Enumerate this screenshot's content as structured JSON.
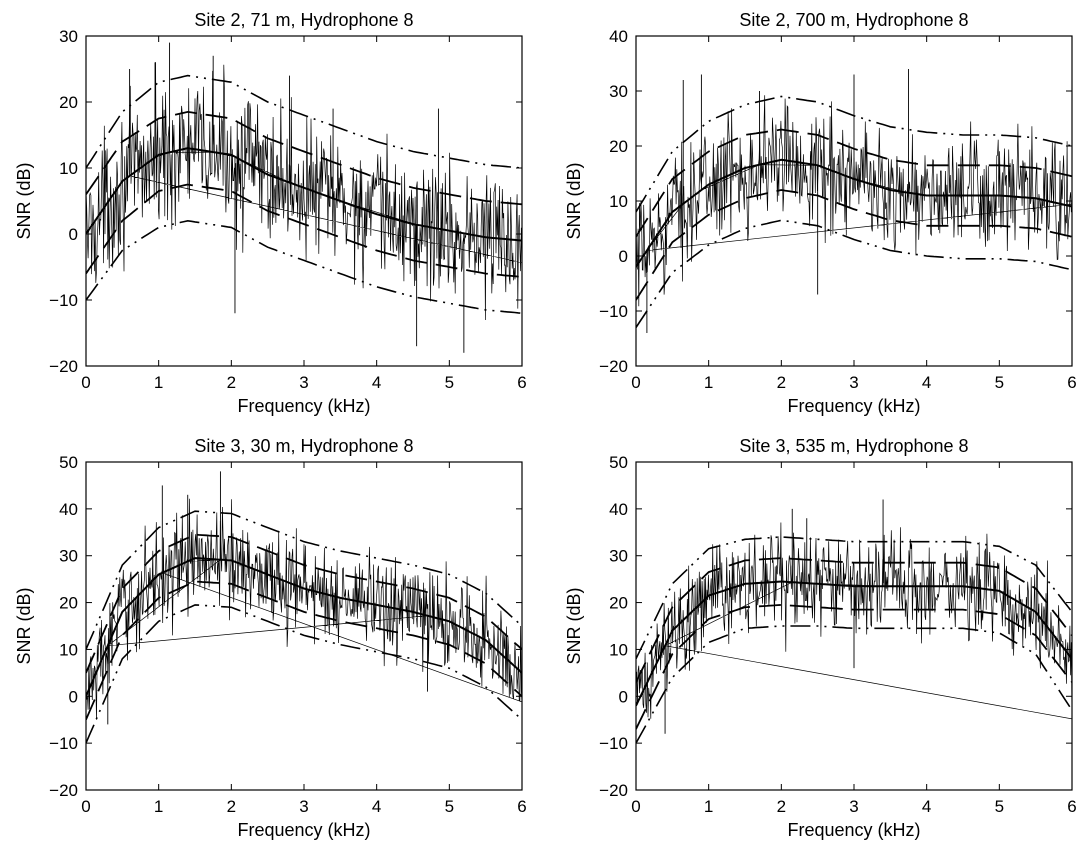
{
  "chart_data": [
    {
      "type": "line",
      "title": "Site 2, 71 m, Hydrophone 8",
      "xlabel": "Frequency (kHz)",
      "ylabel": "SNR (dB)",
      "xlim": [
        0,
        6
      ],
      "ylim": [
        -20,
        30
      ],
      "xticks": [
        0,
        1,
        2,
        3,
        4,
        5,
        6
      ],
      "yticks": [
        -20,
        -10,
        0,
        10,
        20,
        30
      ],
      "grid": false,
      "series": [
        {
          "style": "noisy-solid",
          "x": [
            0,
            0.5,
            1.0,
            1.4,
            2.0,
            2.5,
            3.0,
            3.5,
            4.0,
            4.5,
            5.0,
            5.5,
            6.0
          ],
          "y": [
            0,
            8,
            12,
            13,
            12,
            9,
            7,
            5,
            3,
            1.5,
            0.5,
            -0.5,
            -1
          ]
        },
        {
          "style": "solid",
          "x": [
            0,
            0.5,
            1.0,
            1.4,
            2.0,
            2.5,
            3.0,
            3.5,
            4.0,
            4.5,
            5.0,
            5.5,
            6.0
          ],
          "y": [
            0,
            8,
            12,
            13,
            12,
            9,
            7,
            5,
            3,
            1.5,
            0.5,
            -0.5,
            -1
          ]
        },
        {
          "style": "dashed",
          "x": [
            0,
            0.5,
            1.0,
            1.4,
            2.0,
            2.5,
            3.0,
            3.5,
            4.0,
            4.5,
            5.0,
            5.5,
            6.0
          ],
          "y": [
            6,
            14,
            17.5,
            18.5,
            17.5,
            14.5,
            12.5,
            10.5,
            8.5,
            7,
            6,
            5,
            4.5
          ]
        },
        {
          "style": "dashed",
          "x": [
            0,
            0.5,
            1.0,
            1.4,
            2.0,
            2.5,
            3.0,
            3.5,
            4.0,
            4.5,
            5.0,
            5.5,
            6.0
          ],
          "y": [
            -6,
            2,
            6.5,
            7.5,
            6.5,
            3.5,
            1.5,
            -0.5,
            -2.5,
            -4,
            -5,
            -6,
            -6.5
          ]
        },
        {
          "style": "dashdot",
          "x": [
            0,
            0.5,
            1.0,
            1.4,
            2.0,
            2.5,
            3.0,
            3.5,
            4.0,
            4.5,
            5.0,
            5.5,
            6.0
          ],
          "y": [
            10,
            18.5,
            23,
            24,
            23,
            20,
            18,
            16,
            14,
            12.5,
            11.5,
            10.5,
            10
          ]
        },
        {
          "style": "dashdot",
          "x": [
            0,
            0.5,
            1.0,
            1.4,
            2.0,
            2.5,
            3.0,
            3.5,
            4.0,
            4.5,
            5.0,
            5.5,
            6.0
          ],
          "y": [
            -10,
            -2.5,
            1,
            2,
            1,
            -2,
            -4,
            -6,
            -8,
            -9.5,
            -10.5,
            -11.5,
            -12
          ]
        }
      ],
      "spikes": [
        [
          0.6,
          25
        ],
        [
          0.95,
          26
        ],
        [
          1.15,
          29
        ],
        [
          1.75,
          27
        ],
        [
          2.05,
          -12
        ],
        [
          2.8,
          24
        ],
        [
          3.4,
          19
        ],
        [
          4.55,
          -17
        ],
        [
          4.85,
          19
        ],
        [
          5.2,
          -18
        ]
      ]
    },
    {
      "type": "line",
      "title": "Site 2, 700 m, Hydrophone 8",
      "xlabel": "Frequency (kHz)",
      "ylabel": "SNR (dB)",
      "xlim": [
        0,
        6
      ],
      "ylim": [
        -20,
        40
      ],
      "xticks": [
        0,
        1,
        2,
        3,
        4,
        5,
        6
      ],
      "yticks": [
        -20,
        -10,
        0,
        10,
        20,
        30,
        40
      ],
      "grid": false,
      "series": [
        {
          "style": "noisy-solid",
          "x": [
            0,
            0.5,
            1.0,
            1.5,
            2.0,
            2.5,
            3.0,
            3.5,
            4.0,
            4.5,
            5.0,
            5.5,
            6.0
          ],
          "y": [
            -2,
            8,
            13,
            16,
            17.5,
            16.5,
            14,
            12,
            11,
            11,
            11,
            10.5,
            9
          ]
        },
        {
          "style": "solid",
          "x": [
            0,
            0.5,
            1.0,
            1.5,
            2.0,
            2.5,
            3.0,
            3.5,
            4.0,
            4.5,
            5.0,
            5.5,
            6.0
          ],
          "y": [
            -2,
            8,
            13,
            16,
            17.5,
            16.5,
            14,
            12,
            11,
            11,
            11,
            10.5,
            9
          ]
        },
        {
          "style": "dashed",
          "x": [
            0,
            0.5,
            1.0,
            1.5,
            2.0,
            2.5,
            3.0,
            3.5,
            4.0,
            4.5,
            5.0,
            5.5,
            6.0
          ],
          "y": [
            3.5,
            14,
            19,
            22,
            23,
            22,
            19.5,
            17.5,
            16.5,
            16.5,
            16.5,
            16,
            14.5
          ]
        },
        {
          "style": "dashed",
          "x": [
            0,
            0.5,
            1.0,
            1.5,
            2.0,
            2.5,
            3.0,
            3.5,
            4.0,
            4.5,
            5.0,
            5.5,
            6.0
          ],
          "y": [
            -8,
            2.5,
            7.5,
            10.5,
            12,
            11,
            8.5,
            6.5,
            5.5,
            5.5,
            5.5,
            5,
            3.5
          ]
        },
        {
          "style": "dashdot",
          "x": [
            0,
            0.5,
            1.0,
            1.5,
            2.0,
            2.5,
            3.0,
            3.5,
            4.0,
            4.5,
            5.0,
            5.5,
            6.0
          ],
          "y": [
            8,
            19,
            24.5,
            27.5,
            29,
            28,
            25.5,
            23.5,
            22.5,
            22,
            22,
            21.5,
            20
          ]
        },
        {
          "style": "dashdot",
          "x": [
            0,
            0.5,
            1.0,
            1.5,
            2.0,
            2.5,
            3.0,
            3.5,
            4.0,
            4.5,
            5.0,
            5.5,
            6.0
          ],
          "y": [
            -13,
            -3,
            2,
            5,
            6.5,
            5.5,
            3,
            1,
            0,
            -0.5,
            -0.5,
            -1,
            -2.5
          ]
        }
      ],
      "spikes": [
        [
          0.15,
          -14
        ],
        [
          0.65,
          32
        ],
        [
          0.9,
          33
        ],
        [
          1.7,
          30
        ],
        [
          2.5,
          -7
        ],
        [
          3.0,
          33
        ],
        [
          3.75,
          34
        ]
      ]
    },
    {
      "type": "line",
      "title": "Site 3, 30 m, Hydrophone 8",
      "xlabel": "Frequency (kHz)",
      "ylabel": "SNR (dB)",
      "xlim": [
        0,
        6
      ],
      "ylim": [
        -20,
        50
      ],
      "xticks": [
        0,
        1,
        2,
        3,
        4,
        5,
        6
      ],
      "yticks": [
        -20,
        -10,
        0,
        10,
        20,
        30,
        40,
        50
      ],
      "grid": false,
      "series": [
        {
          "style": "noisy-solid",
          "x": [
            0,
            0.5,
            1.0,
            1.5,
            2.0,
            2.5,
            3.0,
            3.5,
            4.0,
            4.5,
            5.0,
            5.5,
            6.0
          ],
          "y": [
            0,
            18,
            26,
            29.5,
            29,
            26,
            23,
            21,
            19.5,
            18,
            16,
            12,
            5
          ]
        },
        {
          "style": "solid",
          "x": [
            0,
            0.5,
            1.0,
            1.5,
            2.0,
            2.5,
            3.0,
            3.5,
            4.0,
            4.5,
            5.0,
            5.5,
            6.0
          ],
          "y": [
            0,
            18,
            26,
            29.5,
            29,
            26,
            23,
            21,
            19.5,
            18,
            16,
            12,
            5
          ]
        },
        {
          "style": "dashed",
          "x": [
            0,
            0.5,
            1.0,
            1.5,
            2.0,
            2.5,
            3.0,
            3.5,
            4.0,
            4.5,
            5.0,
            5.5,
            6.0
          ],
          "y": [
            5,
            23,
            31,
            34.5,
            34,
            31,
            28,
            26,
            24.5,
            23,
            21,
            17,
            10
          ]
        },
        {
          "style": "dashed",
          "x": [
            0,
            0.5,
            1.0,
            1.5,
            2.0,
            2.5,
            3.0,
            3.5,
            4.0,
            4.5,
            5.0,
            5.5,
            6.0
          ],
          "y": [
            -5,
            13,
            21,
            24.5,
            24,
            21,
            18,
            16,
            14.5,
            13,
            11,
            7,
            0
          ]
        },
        {
          "style": "dashdot",
          "x": [
            0,
            0.5,
            1.0,
            1.5,
            2.0,
            2.5,
            3.0,
            3.5,
            4.0,
            4.5,
            5.0,
            5.5,
            6.0
          ],
          "y": [
            10,
            28,
            36,
            39.5,
            39,
            36,
            33,
            31,
            29.5,
            28,
            26,
            22,
            15
          ]
        },
        {
          "style": "dashdot",
          "x": [
            0,
            0.5,
            1.0,
            1.5,
            2.0,
            2.5,
            3.0,
            3.5,
            4.0,
            4.5,
            5.0,
            5.5,
            6.0
          ],
          "y": [
            -10,
            8,
            16,
            19.5,
            19,
            16,
            13,
            11,
            9.5,
            8,
            6,
            2,
            -5
          ]
        }
      ],
      "spikes": [
        [
          1.05,
          45
        ],
        [
          1.4,
          43
        ],
        [
          1.85,
          48
        ],
        [
          0.3,
          -6
        ],
        [
          4.7,
          1
        ]
      ]
    },
    {
      "type": "line",
      "title": "Site 3, 535 m, Hydrophone 8",
      "xlabel": "Frequency (kHz)",
      "ylabel": "SNR (dB)",
      "xlim": [
        0,
        6
      ],
      "ylim": [
        -20,
        50
      ],
      "xticks": [
        0,
        1,
        2,
        3,
        4,
        5,
        6
      ],
      "yticks": [
        -20,
        -10,
        0,
        10,
        20,
        30,
        40,
        50
      ],
      "grid": false,
      "series": [
        {
          "style": "noisy-solid",
          "x": [
            0,
            0.5,
            1.0,
            1.5,
            2.0,
            2.5,
            3.0,
            3.5,
            4.0,
            4.5,
            5.0,
            5.5,
            6.0
          ],
          "y": [
            -2,
            14,
            21.5,
            24,
            24.5,
            24,
            23.5,
            23.5,
            23.5,
            23.5,
            22.5,
            18,
            8
          ]
        },
        {
          "style": "solid",
          "x": [
            0,
            0.5,
            1.0,
            1.5,
            2.0,
            2.5,
            3.0,
            3.5,
            4.0,
            4.5,
            5.0,
            5.5,
            6.0
          ],
          "y": [
            -2,
            14,
            21.5,
            24,
            24.5,
            24,
            23.5,
            23.5,
            23.5,
            23.5,
            22.5,
            18,
            8
          ]
        },
        {
          "style": "dashed",
          "x": [
            0,
            0.5,
            1.0,
            1.5,
            2.0,
            2.5,
            3.0,
            3.5,
            4.0,
            4.5,
            5.0,
            5.5,
            6.0
          ],
          "y": [
            3,
            19,
            26.5,
            29,
            29.5,
            29,
            28.5,
            28.5,
            28.5,
            28.5,
            27.5,
            23,
            13
          ]
        },
        {
          "style": "dashed",
          "x": [
            0,
            0.5,
            1.0,
            1.5,
            2.0,
            2.5,
            3.0,
            3.5,
            4.0,
            4.5,
            5.0,
            5.5,
            6.0
          ],
          "y": [
            -7,
            9,
            16.5,
            19,
            19.5,
            19,
            18.5,
            18.5,
            18.5,
            18.5,
            17.5,
            13,
            3
          ]
        },
        {
          "style": "dashdot",
          "x": [
            0,
            0.5,
            1.0,
            1.5,
            2.0,
            2.5,
            3.0,
            3.5,
            4.0,
            4.5,
            5.0,
            5.5,
            6.0
          ],
          "y": [
            8,
            24,
            31.5,
            33.5,
            34,
            33.5,
            33,
            33,
            33,
            33,
            32,
            28,
            18
          ]
        },
        {
          "style": "dashdot",
          "x": [
            0,
            0.5,
            1.0,
            1.5,
            2.0,
            2.5,
            3.0,
            3.5,
            4.0,
            4.5,
            5.0,
            5.5,
            6.0
          ],
          "y": [
            -10,
            4,
            11.5,
            14.5,
            15,
            15,
            14.5,
            14.5,
            14.5,
            14.5,
            13.5,
            9,
            -3
          ]
        }
      ],
      "spikes": [
        [
          0.4,
          -8
        ],
        [
          2.15,
          40
        ],
        [
          3.0,
          6
        ],
        [
          3.4,
          42
        ],
        [
          2.35,
          38
        ]
      ]
    }
  ]
}
